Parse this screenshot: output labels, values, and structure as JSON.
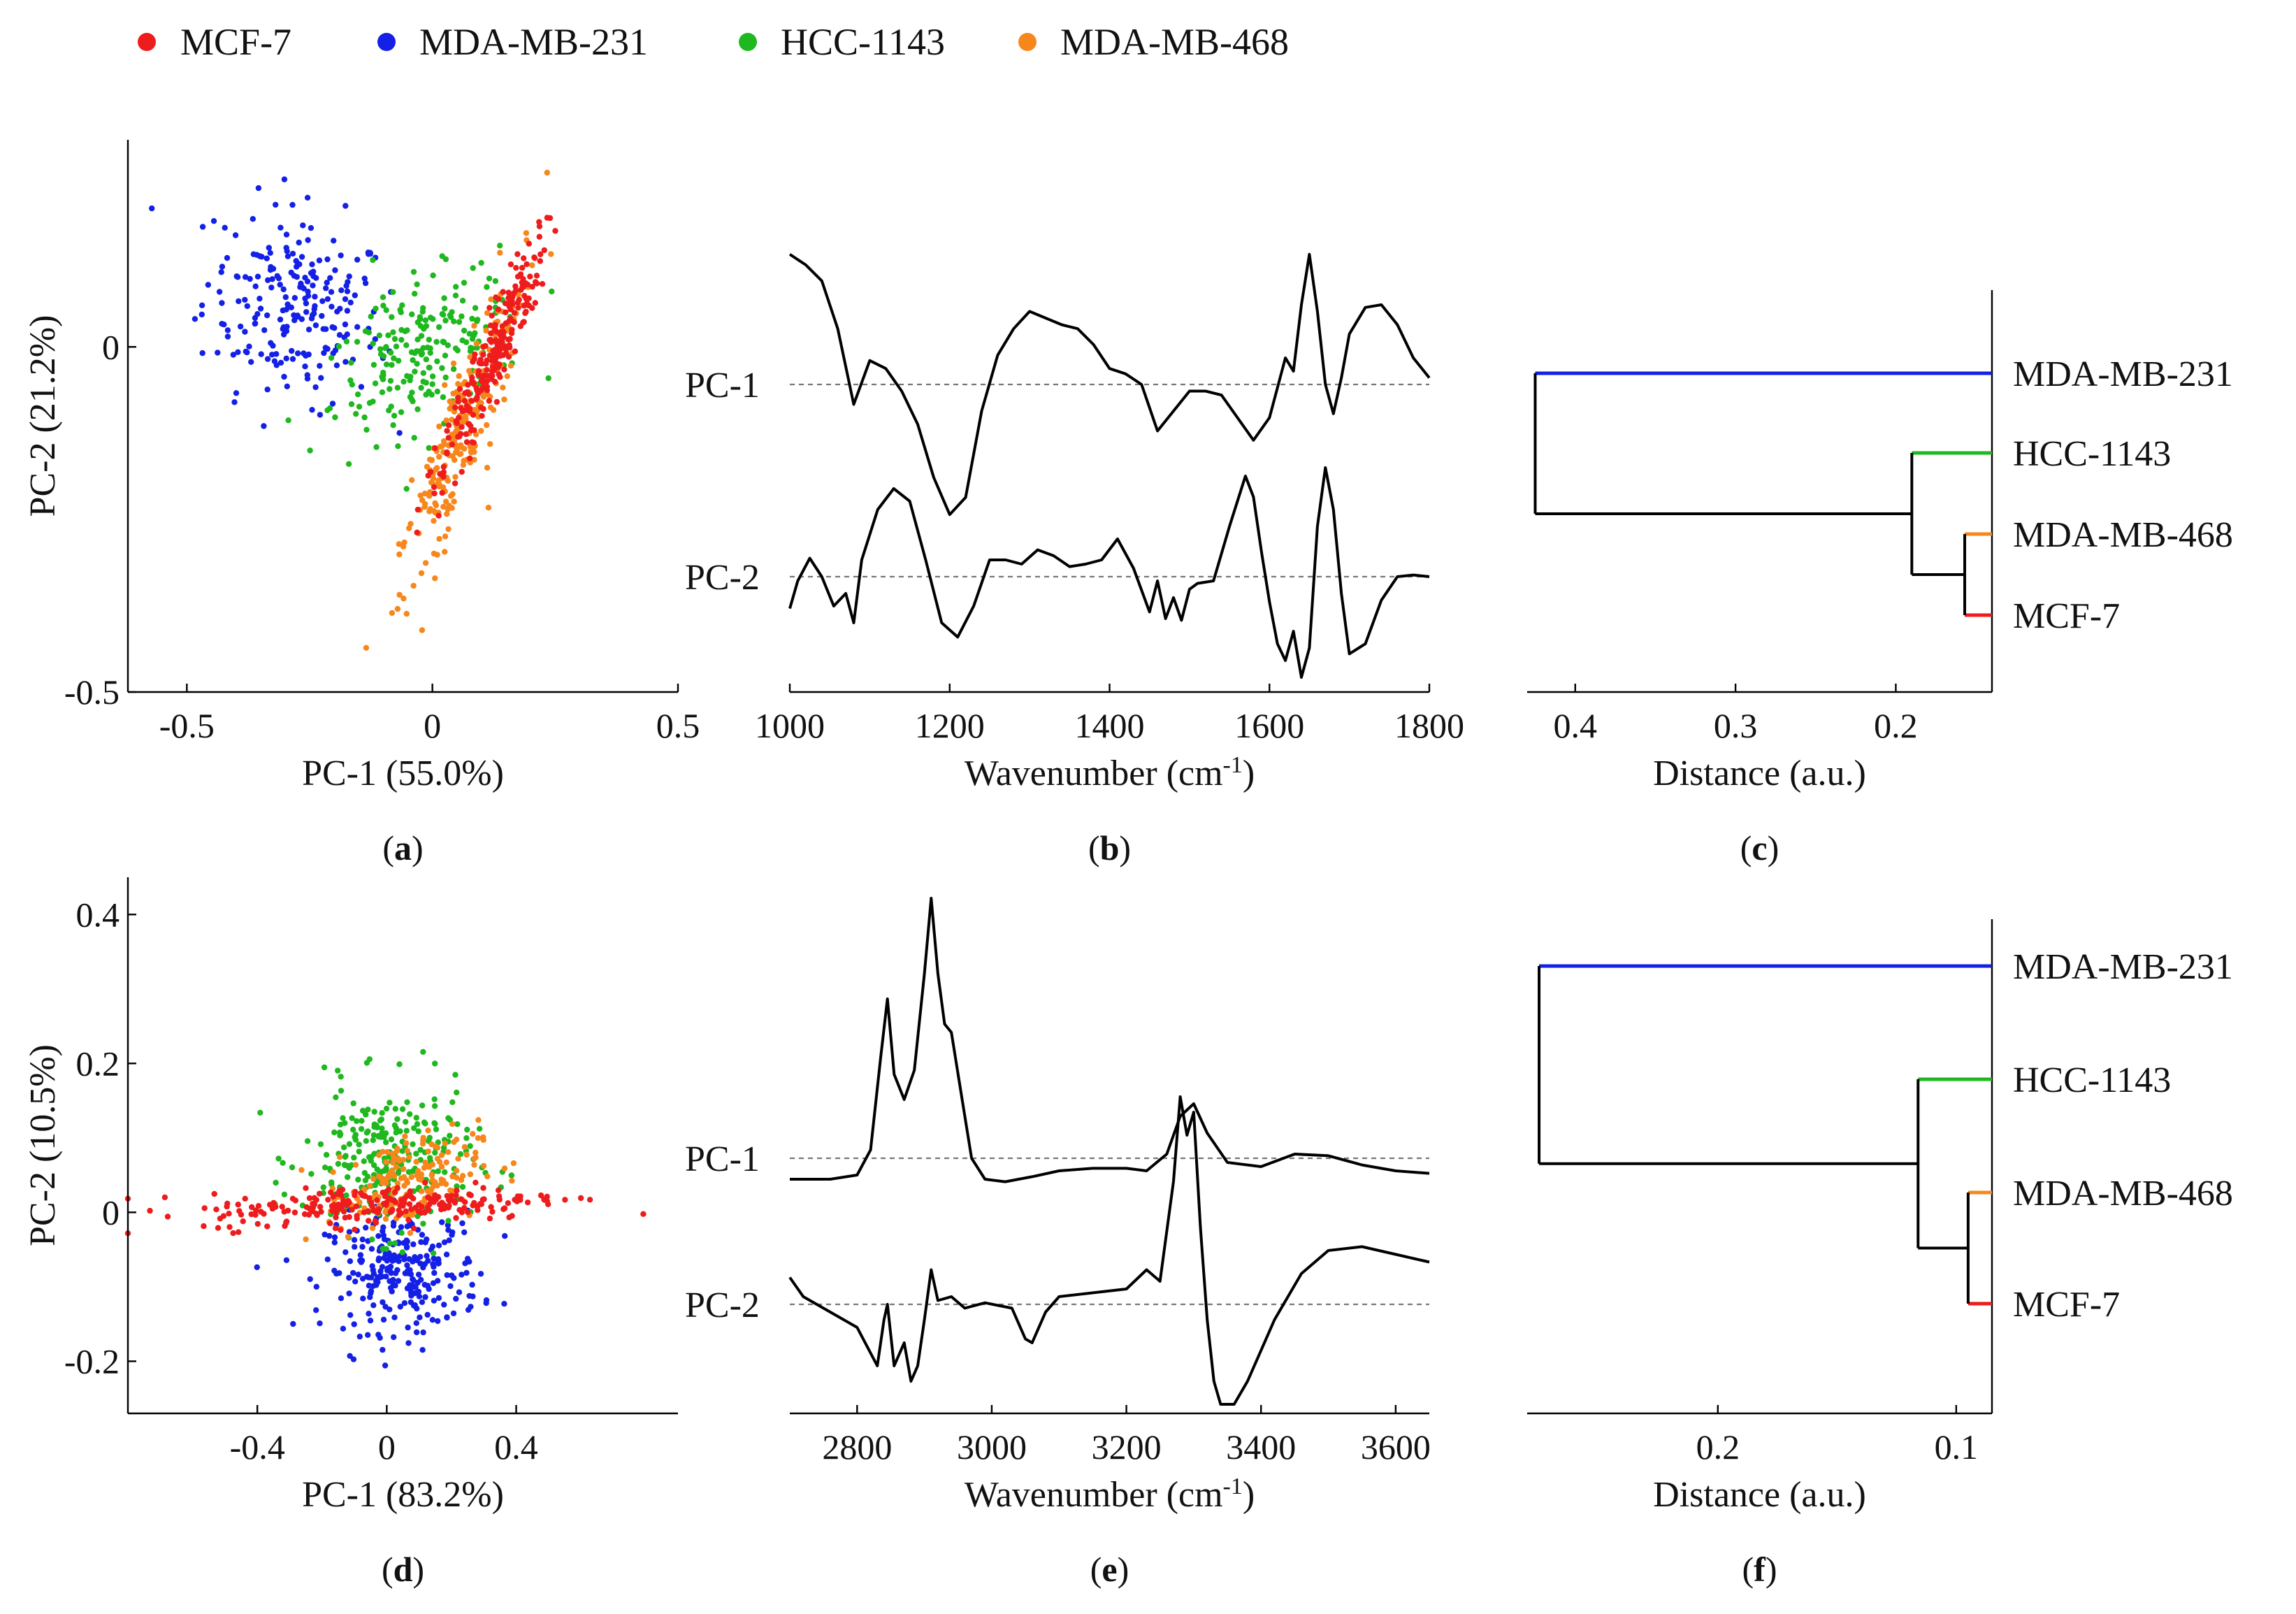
{
  "legend": [
    {
      "label": "MCF-7",
      "color": "#ee1c1c"
    },
    {
      "label": "MDA-MB-231",
      "color": "#1420e6"
    },
    {
      "label": "HCC-1143",
      "color": "#1fb81f"
    },
    {
      "label": "MDA-MB-468",
      "color": "#f7871c"
    }
  ],
  "colors": {
    "MCF-7": "#ee1c1c",
    "MDA-MB-231": "#1420e6",
    "HCC-1143": "#1fb81f",
    "MDA-MB-468": "#f7871c",
    "tree": "#000000"
  },
  "panels": {
    "a": {
      "label": "(a)",
      "letter": "a",
      "chart_data": {
        "type": "scatter",
        "xlabel": "PC-1 (55.0%)",
        "ylabel": "PC-2 (21.2%)",
        "xlim": [
          -0.62,
          0.5
        ],
        "ylim": [
          -0.5,
          0.3
        ],
        "xticks": [
          -0.5,
          0,
          0.5
        ],
        "xtick_labels": [
          "-0.5",
          "0",
          "0.5"
        ],
        "yticks": [
          -0.5,
          0
        ],
        "ytick_labels": [
          "-0.5",
          "0"
        ],
        "series": [
          {
            "name": "MDA-MB-231",
            "cluster": {
              "center": [
                -0.28,
                0.06
              ],
              "sd_major": 0.09,
              "sd_minor": 0.07,
              "slope": -0.2,
              "n": 220
            }
          },
          {
            "name": "HCC-1143",
            "cluster": {
              "center": [
                -0.02,
                -0.01
              ],
              "sd_major": 0.1,
              "sd_minor": 0.05,
              "slope": 0.4,
              "n": 200
            }
          },
          {
            "name": "MDA-MB-468",
            "cluster": {
              "center": [
                0.06,
                -0.12
              ],
              "sd_major": 0.13,
              "sd_minor": 0.025,
              "slope": 1.9,
              "n": 240
            }
          },
          {
            "name": "MCF-7",
            "cluster": {
              "center": [
                0.12,
                -0.02
              ],
              "sd_major": 0.1,
              "sd_minor": 0.018,
              "slope": 1.7,
              "n": 240
            }
          }
        ]
      }
    },
    "b": {
      "label": "(b)",
      "letter": "b",
      "chart_data": {
        "type": "line",
        "xlabel": "Wavenumber (cm⁻¹)",
        "xlim": [
          1000,
          1800
        ],
        "xticks": [
          1000,
          1200,
          1400,
          1600,
          1800
        ],
        "xtick_labels": [
          "1000",
          "1200",
          "1400",
          "1600",
          "1800"
        ],
        "series": [
          {
            "name": "PC-1",
            "baseline": 0,
            "x": [
              1000,
              1020,
              1040,
              1060,
              1080,
              1100,
              1120,
              1140,
              1160,
              1180,
              1200,
              1220,
              1240,
              1260,
              1280,
              1300,
              1320,
              1340,
              1360,
              1380,
              1400,
              1420,
              1440,
              1460,
              1480,
              1500,
              1520,
              1540,
              1560,
              1580,
              1600,
              1620,
              1630,
              1640,
              1650,
              1660,
              1670,
              1680,
              1690,
              1700,
              1720,
              1740,
              1760,
              1780,
              1800
            ],
            "y": [
              0.98,
              0.9,
              0.78,
              0.42,
              -0.15,
              0.18,
              0.12,
              -0.05,
              -0.3,
              -0.7,
              -0.98,
              -0.85,
              -0.2,
              0.22,
              0.42,
              0.55,
              0.5,
              0.45,
              0.42,
              0.3,
              0.12,
              0.08,
              0.0,
              -0.35,
              -0.2,
              -0.05,
              -0.05,
              -0.08,
              -0.25,
              -0.42,
              -0.25,
              0.2,
              0.1,
              0.6,
              0.98,
              0.55,
              0.0,
              -0.22,
              0.05,
              0.38,
              0.58,
              0.6,
              0.45,
              0.2,
              0.05
            ]
          },
          {
            "name": "PC-2",
            "baseline": 0,
            "x": [
              1000,
              1010,
              1025,
              1040,
              1055,
              1070,
              1080,
              1090,
              1110,
              1130,
              1150,
              1170,
              1190,
              1210,
              1230,
              1250,
              1270,
              1290,
              1310,
              1330,
              1350,
              1370,
              1390,
              1410,
              1430,
              1450,
              1460,
              1470,
              1480,
              1490,
              1500,
              1510,
              1530,
              1550,
              1570,
              1580,
              1590,
              1600,
              1610,
              1620,
              1630,
              1640,
              1650,
              1660,
              1670,
              1680,
              1690,
              1700,
              1720,
              1740,
              1760,
              1780,
              1800
            ],
            "y": [
              -0.38,
              -0.05,
              0.22,
              0.0,
              -0.35,
              -0.2,
              -0.55,
              0.2,
              0.8,
              1.05,
              0.9,
              0.2,
              -0.55,
              -0.72,
              -0.35,
              0.2,
              0.2,
              0.15,
              0.32,
              0.25,
              0.12,
              0.15,
              0.2,
              0.45,
              0.1,
              -0.42,
              -0.05,
              -0.5,
              -0.25,
              -0.52,
              -0.15,
              -0.08,
              -0.05,
              0.6,
              1.2,
              0.95,
              0.3,
              -0.3,
              -0.8,
              -1.0,
              -0.65,
              -1.2,
              -0.85,
              0.6,
              1.3,
              0.8,
              -0.2,
              -0.92,
              -0.8,
              -0.28,
              0.0,
              0.02,
              0.0
            ]
          }
        ]
      }
    },
    "c": {
      "label": "(c)",
      "letter": "c",
      "chart_data": {
        "type": "dendrogram",
        "xlabel": "Distance (a.u.)",
        "xlim": [
          0.43,
          0.14
        ],
        "xticks": [
          0.4,
          0.3,
          0.2
        ],
        "xtick_labels": [
          "0.4",
          "0.3",
          "0.2"
        ],
        "leaves": [
          "MDA-MB-231",
          "HCC-1143",
          "MDA-MB-468",
          "MCF-7"
        ],
        "merges": [
          {
            "members": [
              "MDA-MB-468",
              "MCF-7"
            ],
            "distance": 0.157
          },
          {
            "members": [
              "HCC-1143",
              "MDA-MB-468+MCF-7"
            ],
            "distance": 0.19
          },
          {
            "members": [
              "MDA-MB-231",
              "rest"
            ],
            "distance": 0.425
          }
        ],
        "leaf_tip": 0.14
      }
    },
    "d": {
      "label": "(d)",
      "letter": "d",
      "chart_data": {
        "type": "scatter",
        "xlabel": "PC-1 (83.2%)",
        "ylabel": "PC-2 (10.5%)",
        "xlim": [
          -0.8,
          0.9
        ],
        "ylim": [
          -0.27,
          0.45
        ],
        "xticks": [
          -0.4,
          0,
          0.4
        ],
        "xtick_labels": [
          "-0.4",
          "0",
          "0.4"
        ],
        "yticks": [
          -0.2,
          0,
          0.2,
          0.4
        ],
        "ytick_labels": [
          "-0.2",
          "0",
          "0.2",
          "0.4"
        ],
        "series": [
          {
            "name": "MDA-MB-231",
            "cluster": {
              "center": [
                0.05,
                -0.08
              ],
              "sd_major": 0.12,
              "sd_minor": 0.04,
              "slope": 0.0,
              "n": 260
            }
          },
          {
            "name": "HCC-1143",
            "cluster": {
              "center": [
                0.0,
                0.07
              ],
              "sd_major": 0.13,
              "sd_minor": 0.05,
              "slope": 0.0,
              "n": 260
            }
          },
          {
            "name": "MDA-MB-468",
            "cluster": {
              "center": [
                0.05,
                0.04
              ],
              "sd_major": 0.12,
              "sd_minor": 0.03,
              "slope": 0.1,
              "n": 180
            }
          },
          {
            "name": "MCF-7",
            "cluster": {
              "center": [
                0.0,
                0.01
              ],
              "sd_major": 0.28,
              "sd_minor": 0.013,
              "slope": 0.02,
              "n": 240
            }
          }
        ]
      }
    },
    "e": {
      "label": "(e)",
      "letter": "e",
      "chart_data": {
        "type": "line",
        "xlabel": "Wavenumber (cm⁻¹)",
        "xlim": [
          2700,
          3650
        ],
        "xticks": [
          2800,
          3000,
          3200,
          3400,
          3600
        ],
        "xtick_labels": [
          "2800",
          "3000",
          "3200",
          "3400",
          "3600"
        ],
        "series": [
          {
            "name": "PC-1",
            "baseline": 0,
            "x": [
              2700,
              2760,
              2800,
              2820,
              2835,
              2845,
              2855,
              2870,
              2885,
              2900,
              2910,
              2920,
              2930,
              2940,
              2950,
              2970,
              2990,
              3020,
              3060,
              3100,
              3150,
              3200,
              3230,
              3260,
              3280,
              3300,
              3320,
              3350,
              3400,
              3450,
              3500,
              3550,
              3600,
              3650
            ],
            "y": [
              -0.25,
              -0.25,
              -0.2,
              0.1,
              1.2,
              1.9,
              1.0,
              0.7,
              1.05,
              2.2,
              3.1,
              2.2,
              1.6,
              1.5,
              1.0,
              0.0,
              -0.25,
              -0.28,
              -0.22,
              -0.15,
              -0.12,
              -0.12,
              -0.15,
              0.05,
              0.5,
              0.65,
              0.3,
              -0.05,
              -0.1,
              0.05,
              0.03,
              -0.08,
              -0.15,
              -0.18
            ]
          },
          {
            "name": "PC-2",
            "baseline": 0,
            "x": [
              2700,
              2720,
              2760,
              2800,
              2830,
              2840,
              2845,
              2855,
              2870,
              2880,
              2890,
              2900,
              2910,
              2920,
              2940,
              2960,
              2990,
              3030,
              3050,
              3060,
              3080,
              3100,
              3150,
              3200,
              3230,
              3250,
              3270,
              3280,
              3290,
              3300,
              3310,
              3320,
              3330,
              3340,
              3360,
              3380,
              3420,
              3460,
              3500,
              3550,
              3600,
              3650
            ],
            "y": [
              0.35,
              0.1,
              -0.1,
              -0.3,
              -0.8,
              -0.2,
              0.0,
              -0.8,
              -0.5,
              -1.0,
              -0.8,
              -0.2,
              0.45,
              0.05,
              0.1,
              -0.05,
              0.02,
              -0.05,
              -0.45,
              -0.5,
              -0.1,
              0.1,
              0.15,
              0.2,
              0.45,
              0.3,
              1.6,
              2.7,
              2.2,
              2.5,
              1.0,
              -0.2,
              -1.0,
              -1.3,
              -1.3,
              -1.0,
              -0.2,
              0.4,
              0.7,
              0.75,
              0.65,
              0.55
            ]
          }
        ]
      }
    },
    "f": {
      "label": "(f)",
      "letter": "f",
      "chart_data": {
        "type": "dendrogram",
        "xlabel": "Distance (a.u.)",
        "xlim": [
          0.28,
          0.085
        ],
        "xticks": [
          0.2,
          0.1
        ],
        "xtick_labels": [
          "0.2",
          "0.1"
        ],
        "leaves": [
          "MDA-MB-231",
          "HCC-1143",
          "MDA-MB-468",
          "MCF-7"
        ],
        "merges": [
          {
            "members": [
              "MDA-MB-468",
              "MCF-7"
            ],
            "distance": 0.095
          },
          {
            "members": [
              "HCC-1143",
              "MDA-MB-468+MCF-7"
            ],
            "distance": 0.116
          },
          {
            "members": [
              "MDA-MB-231",
              "rest"
            ],
            "distance": 0.275
          }
        ],
        "leaf_tip": 0.085
      }
    }
  }
}
